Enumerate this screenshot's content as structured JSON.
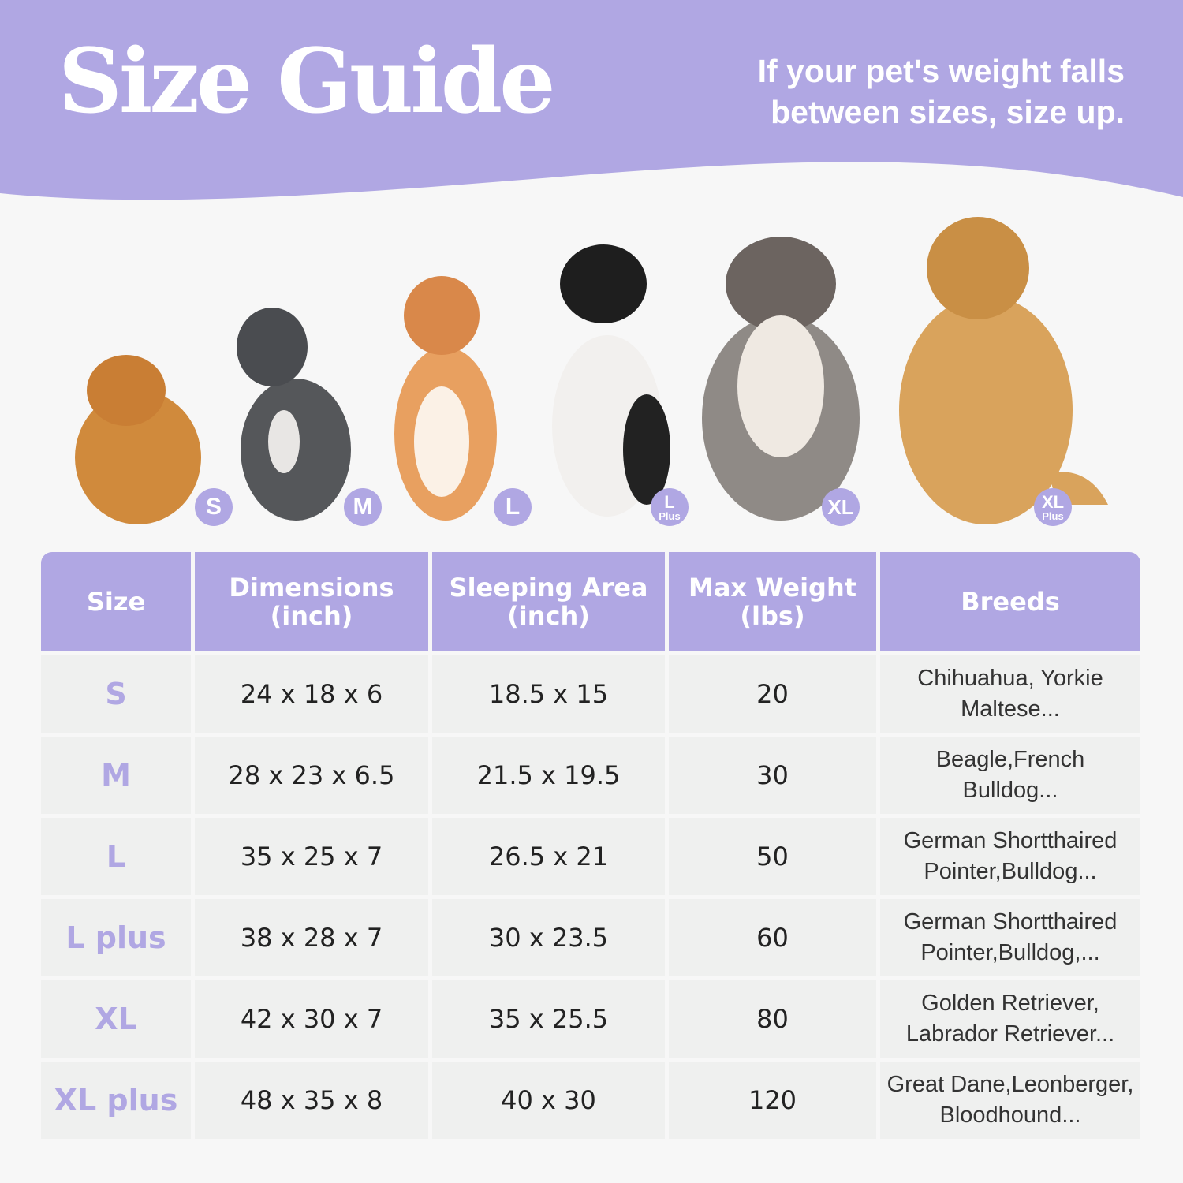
{
  "header": {
    "title": "Size Guide",
    "tip": "If your pet's weight falls between sizes, size up."
  },
  "colors": {
    "accent": "#b0a7e3",
    "background": "#f7f7f7",
    "cell": "#eff0ef"
  },
  "badges": [
    {
      "main": "S",
      "sub": ""
    },
    {
      "main": "M",
      "sub": ""
    },
    {
      "main": "L",
      "sub": ""
    },
    {
      "main": "L",
      "sub": "Plus"
    },
    {
      "main": "XL",
      "sub": ""
    },
    {
      "main": "XL",
      "sub": "Plus"
    }
  ],
  "table": {
    "headers": [
      {
        "line1": "Size",
        "line2": ""
      },
      {
        "line1": "Dimensions",
        "line2": "(inch)"
      },
      {
        "line1": "Sleeping Area",
        "line2": "(inch)"
      },
      {
        "line1": "Max Weight",
        "line2": "(lbs)"
      },
      {
        "line1": "Breeds",
        "line2": ""
      }
    ],
    "rows": [
      {
        "size": "S",
        "dimensions": "24 x 18 x 6",
        "sleeping_area": "18.5 x 15",
        "max_weight": "20",
        "breeds1": "Chihuahua, Yorkie",
        "breeds2": "Maltese..."
      },
      {
        "size": "M",
        "dimensions": "28 x 23 x 6.5",
        "sleeping_area": "21.5 x 19.5",
        "max_weight": "30",
        "breeds1": "Beagle,French",
        "breeds2": "Bulldog..."
      },
      {
        "size": "L",
        "dimensions": "35 x 25 x 7",
        "sleeping_area": "26.5 x 21",
        "max_weight": "50",
        "breeds1": "German Shortthaired",
        "breeds2": "Pointer,Bulldog..."
      },
      {
        "size": "L plus",
        "dimensions": "38 x 28 x 7",
        "sleeping_area": "30 x 23.5",
        "max_weight": "60",
        "breeds1": "German Shortthaired",
        "breeds2": "Pointer,Bulldog,..."
      },
      {
        "size": "XL",
        "dimensions": "42 x 30 x 7",
        "sleeping_area": "35 x 25.5",
        "max_weight": "80",
        "breeds1": "Golden Retriever,",
        "breeds2": "Labrador Retriever..."
      },
      {
        "size": "XL plus",
        "dimensions": "48 x 35 x 8",
        "sleeping_area": "40 x 30",
        "max_weight": "120",
        "breeds1": "Great Dane,Leonberger,",
        "breeds2": "Bloodhound..."
      }
    ]
  }
}
